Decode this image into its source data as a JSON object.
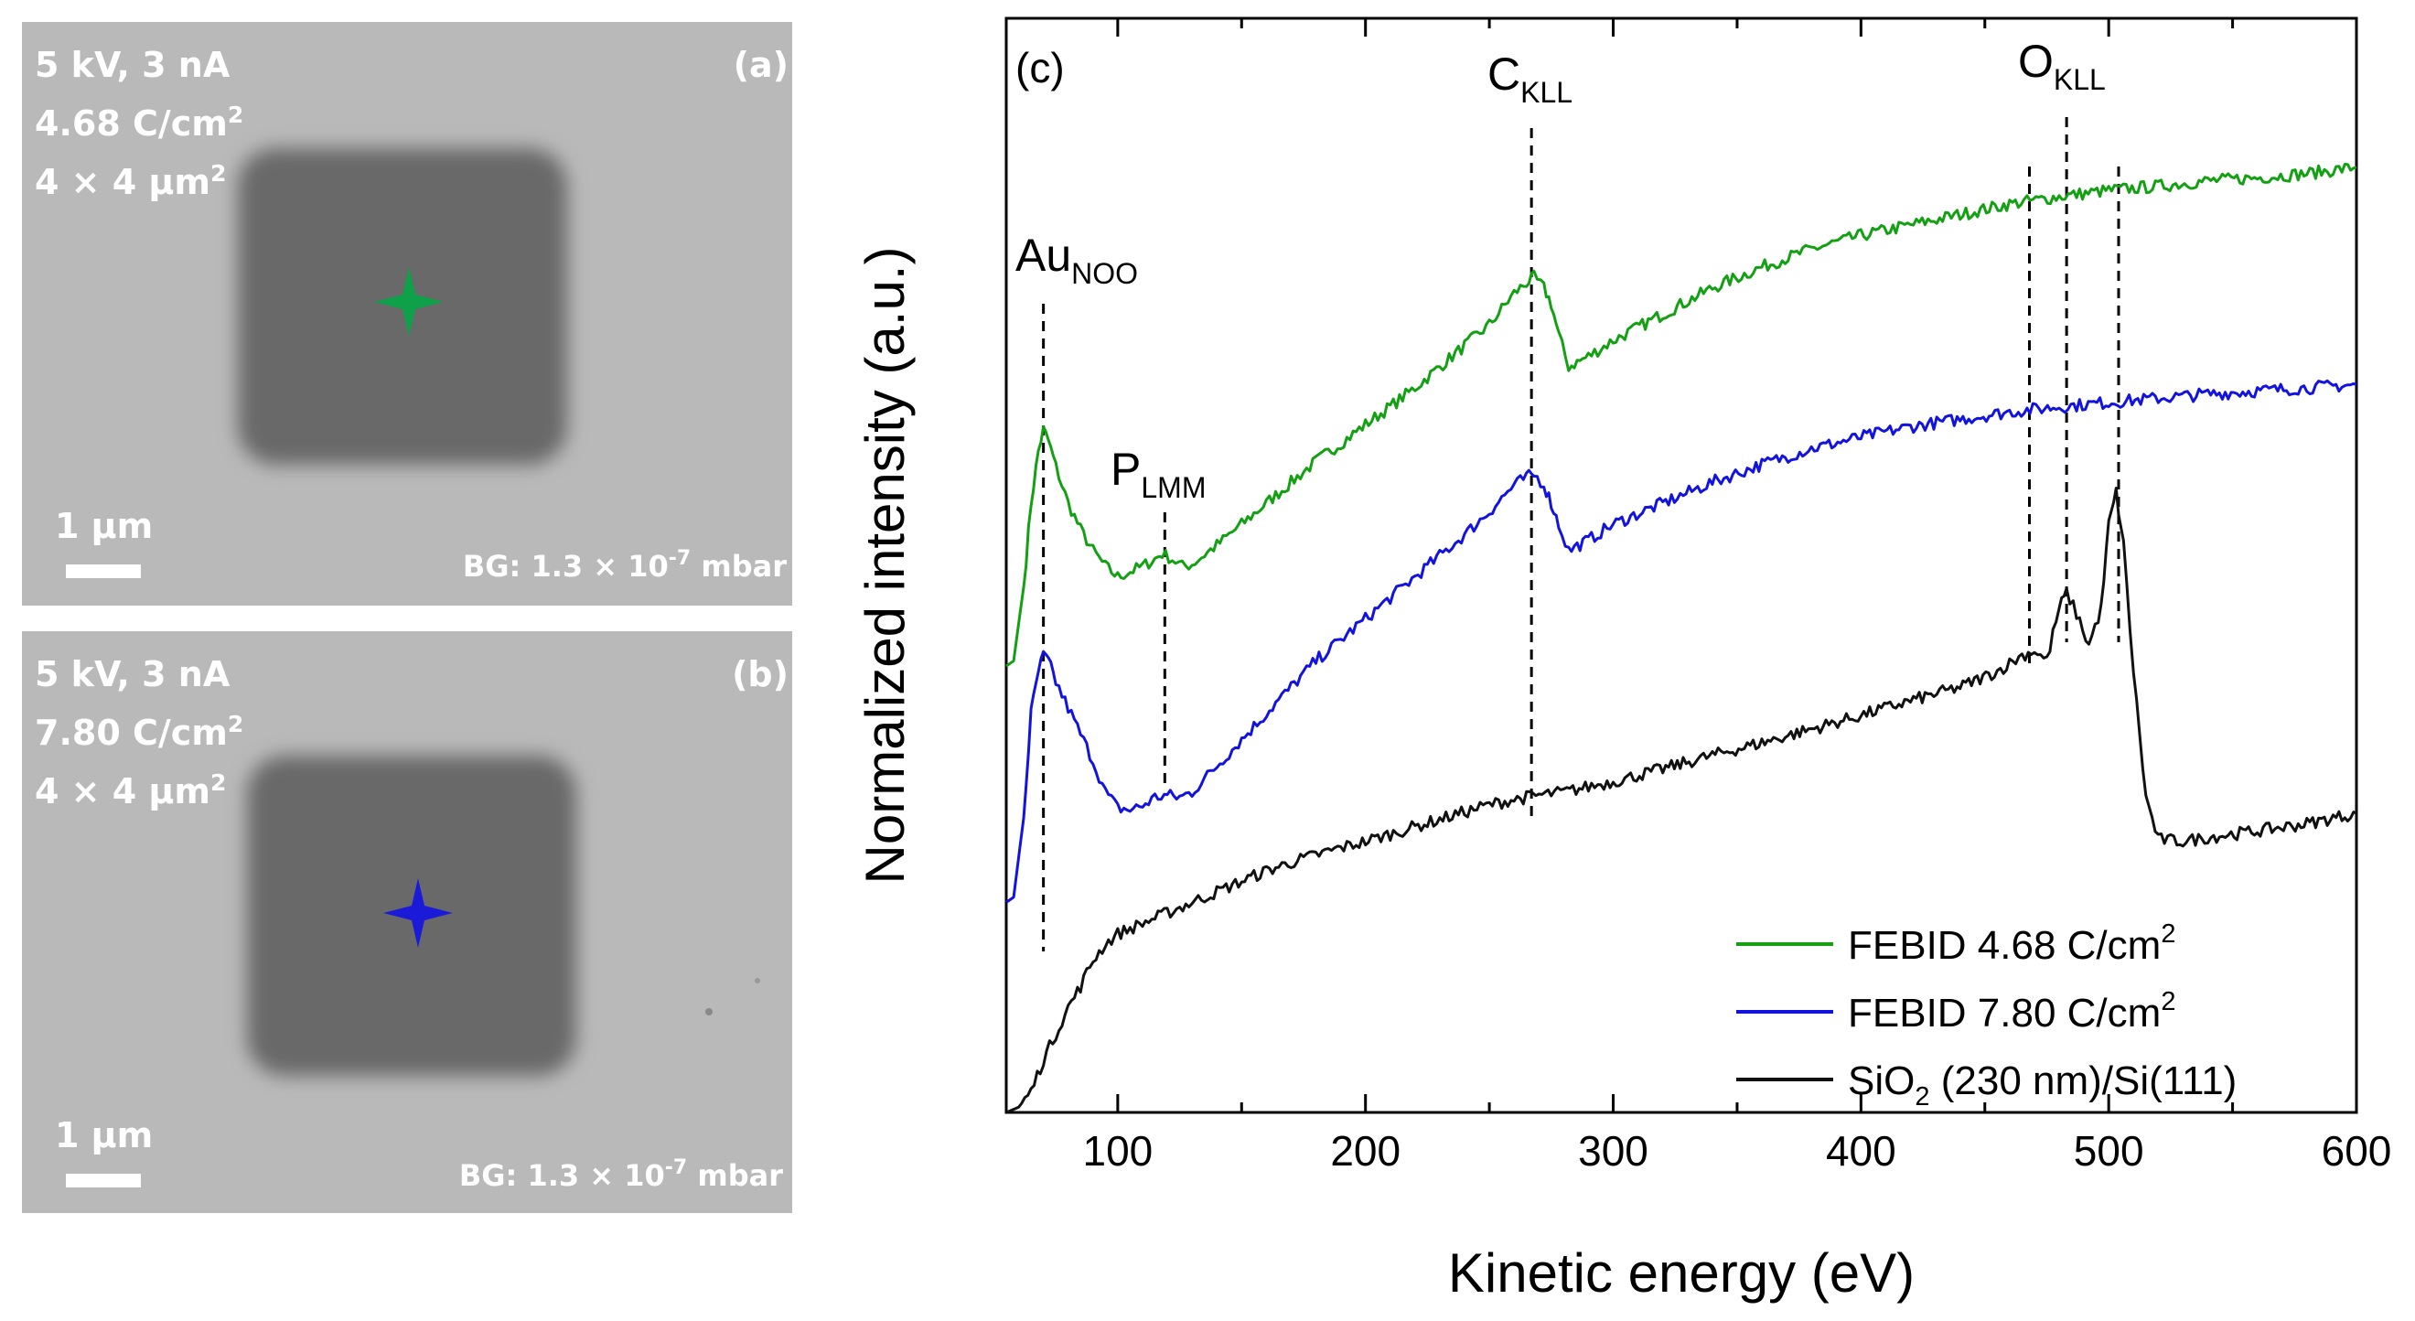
{
  "panel_a": {
    "label": "(a)",
    "beam": "5 kV, 3 nA",
    "dose_value": "4.68 C/cm",
    "dose_sup": "2",
    "area_value": "4 × 4 µm",
    "area_sup": "2",
    "scale_label": "1 µm",
    "bg_prefix": "BG: 1.3 × 10",
    "bg_exp": "-7",
    "bg_unit": " mbar",
    "marker_color": "#0fa04a"
  },
  "panel_b": {
    "label": "(b)",
    "beam": "5 kV, 3 nA",
    "dose_value": "7.80 C/cm",
    "dose_sup": "2",
    "area_value": "4 × 4 µm",
    "area_sup": "2",
    "scale_label": "1 µm",
    "bg_prefix": "BG: 1.3 × 10",
    "bg_exp": "-7",
    "bg_unit": " mbar",
    "marker_color": "#1a1ad8"
  },
  "chart_data": {
    "type": "line",
    "panel_label": "(c)",
    "xlabel": "Kinetic energy (eV)",
    "ylabel": "Normalized intensity (a.u.)",
    "xlim": [
      55,
      600
    ],
    "ylim": [
      0,
      1
    ],
    "x_ticks": [
      100,
      200,
      300,
      400,
      500,
      600
    ],
    "legend_position": "bottom-right",
    "series": [
      {
        "name": "FEBID 4.68 C/cm²",
        "legend_main": "FEBID 4.68 C/cm",
        "legend_sup": "2",
        "legend_sub": "",
        "legend_tail": "",
        "color": "#13a013",
        "x": [
          55,
          58,
          62,
          65,
          68,
          70,
          72,
          75,
          80,
          85,
          90,
          95,
          100,
          105,
          110,
          115,
          118,
          122,
          126,
          130,
          140,
          150,
          160,
          170,
          180,
          190,
          200,
          210,
          220,
          230,
          240,
          250,
          255,
          260,
          265,
          268,
          272,
          275,
          278,
          282,
          290,
          300,
          320,
          340,
          360,
          380,
          400,
          420,
          440,
          460,
          480,
          500,
          520,
          540,
          560,
          580,
          600
        ],
        "y": [
          0.425,
          0.43,
          0.5,
          0.58,
          0.63,
          0.65,
          0.64,
          0.615,
          0.58,
          0.555,
          0.535,
          0.52,
          0.51,
          0.515,
          0.52,
          0.527,
          0.532,
          0.527,
          0.52,
          0.522,
          0.54,
          0.56,
          0.58,
          0.6,
          0.62,
          0.637,
          0.655,
          0.672,
          0.69,
          0.71,
          0.73,
          0.75,
          0.765,
          0.78,
          0.79,
          0.795,
          0.785,
          0.77,
          0.74,
          0.71,
          0.72,
          0.735,
          0.76,
          0.785,
          0.805,
          0.822,
          0.835,
          0.845,
          0.855,
          0.865,
          0.872,
          0.878,
          0.882,
          0.887,
          0.89,
          0.894,
          0.9
        ]
      },
      {
        "name": "FEBID 7.80 C/cm²",
        "legend_main": "FEBID 7.80 C/cm",
        "legend_sup": "2",
        "legend_sub": "",
        "legend_tail": "",
        "color": "#1313e0",
        "x": [
          55,
          58,
          62,
          65,
          68,
          70,
          72,
          75,
          80,
          85,
          90,
          95,
          100,
          105,
          110,
          115,
          120,
          125,
          130,
          140,
          150,
          160,
          170,
          180,
          190,
          200,
          210,
          220,
          230,
          240,
          250,
          255,
          260,
          265,
          268,
          272,
          275,
          278,
          282,
          290,
          300,
          320,
          340,
          360,
          380,
          400,
          420,
          440,
          460,
          480,
          500,
          520,
          540,
          560,
          580,
          600
        ],
        "y": [
          0.2,
          0.205,
          0.28,
          0.38,
          0.42,
          0.435,
          0.43,
          0.41,
          0.385,
          0.36,
          0.335,
          0.305,
          0.29,
          0.288,
          0.292,
          0.3,
          0.302,
          0.3,
          0.305,
          0.33,
          0.355,
          0.38,
          0.405,
          0.43,
          0.45,
          0.47,
          0.49,
          0.51,
          0.53,
          0.55,
          0.572,
          0.585,
          0.597,
          0.605,
          0.607,
          0.598,
          0.58,
          0.56,
          0.535,
          0.545,
          0.56,
          0.58,
          0.6,
          0.617,
          0.632,
          0.643,
          0.653,
          0.66,
          0.667,
          0.672,
          0.676,
          0.68,
          0.684,
          0.687,
          0.69,
          0.693
        ]
      },
      {
        "name": "SiO₂ (230 nm)/Si(111)",
        "legend_main": "SiO",
        "legend_sup": "",
        "legend_sub": "2",
        "legend_tail": " (230 nm)/Si(111)",
        "color": "#111111",
        "x": [
          55,
          60,
          65,
          70,
          75,
          80,
          85,
          90,
          95,
          100,
          110,
          120,
          130,
          140,
          150,
          160,
          170,
          180,
          190,
          200,
          210,
          220,
          230,
          240,
          250,
          260,
          270,
          280,
          290,
          300,
          320,
          340,
          360,
          380,
          400,
          420,
          440,
          455,
          465,
          470,
          475,
          480,
          483,
          487,
          492,
          497,
          500,
          503,
          506,
          510,
          515,
          520,
          530,
          540,
          560,
          580,
          600
        ],
        "y": [
          0.0,
          0.005,
          0.02,
          0.05,
          0.075,
          0.1,
          0.12,
          0.145,
          0.16,
          0.17,
          0.18,
          0.19,
          0.2,
          0.21,
          0.22,
          0.23,
          0.238,
          0.245,
          0.252,
          0.258,
          0.265,
          0.272,
          0.279,
          0.286,
          0.293,
          0.298,
          0.302,
          0.305,
          0.31,
          0.315,
          0.327,
          0.34,
          0.352,
          0.365,
          0.378,
          0.392,
          0.405,
          0.42,
          0.435,
          0.44,
          0.43,
          0.48,
          0.495,
          0.475,
          0.445,
          0.48,
          0.56,
          0.59,
          0.54,
          0.42,
          0.3,
          0.26,
          0.258,
          0.262,
          0.268,
          0.275,
          0.285
        ]
      }
    ],
    "annotations": [
      {
        "main": "Au",
        "sub": "NOO",
        "x": 70
      },
      {
        "main": "P",
        "sub": "LMM",
        "x": 119
      },
      {
        "main": "C",
        "sub": "KLL",
        "x": 267
      },
      {
        "main": "O",
        "sub": "KLL",
        "x": 483
      }
    ],
    "reference_lines_ev": [
      70,
      119,
      267,
      468,
      483,
      504
    ]
  }
}
